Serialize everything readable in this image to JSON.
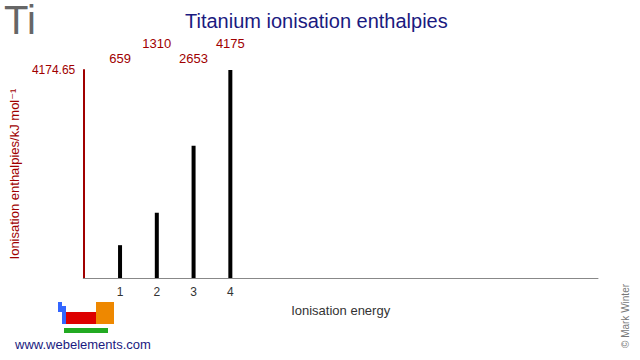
{
  "chart_data": {
    "type": "bar",
    "title": "Titanium ionisation enthalpies",
    "y_label": "Ionisation enthalpies/kJ mol⁻¹",
    "x_label": "Ionisation energy",
    "x": [
      1,
      2,
      3,
      4
    ],
    "values": [
      658.8,
      1309.8,
      2652.5,
      4174.65
    ],
    "value_labels": [
      "659",
      "1310",
      "2653",
      "4175"
    ],
    "data_labels": true,
    "color": "#000000",
    "xlim": [
      0,
      14
    ],
    "xticks": [
      1,
      2,
      3,
      4
    ],
    "ylim": [
      0,
      4174.65
    ],
    "yticks": [
      4174.65
    ],
    "grid": false,
    "annotations": [
      "Ti",
      "www.webelements.com",
      "© Mark Winter"
    ]
  }
}
